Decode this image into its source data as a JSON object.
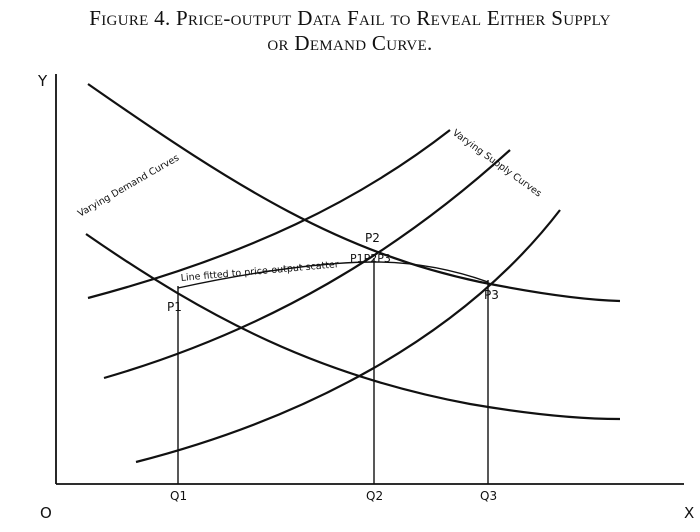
{
  "figure": {
    "title_line1": "Figure 4.  Price-output Data Fail to Reveal Either Supply",
    "title_line2": "or Demand Curve."
  },
  "axes": {
    "y_label": "Y",
    "x_label": "X",
    "origin_label": "O"
  },
  "curve_labels": {
    "demand": "Varying Demand Curves",
    "supply": "Varying Supply Curves",
    "fitted_line": "Line fitted to price-output scatter"
  },
  "points": {
    "p1": "P1",
    "p2": "P2",
    "p3": "P3",
    "p123": "P1P2P3"
  },
  "quantities": {
    "q1": "Q1",
    "q2": "Q2",
    "q3": "Q3"
  }
}
